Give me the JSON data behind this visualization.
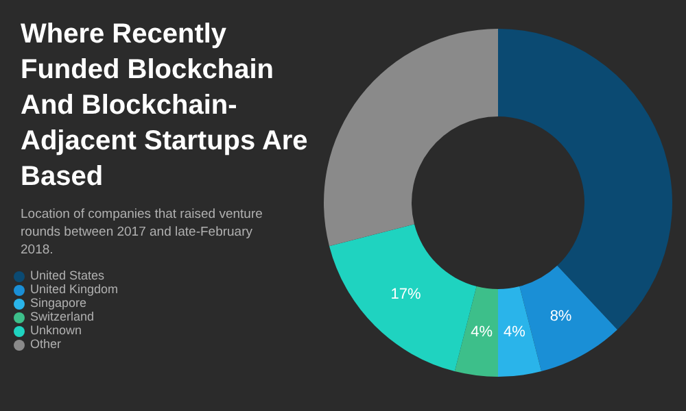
{
  "chart_data": {
    "type": "donut",
    "title": "Where Recently Funded Blockchain And Blockchain-Adjacent Startups Are Based",
    "subtitle": "Location of companies that raised venture rounds between 2017 and late-February 2018.",
    "categories": [
      "United States",
      "United Kingdom",
      "Singapore",
      "Switzerland",
      "Unknown",
      "Other"
    ],
    "values": [
      38,
      8,
      4,
      4,
      17,
      29
    ],
    "colors": [
      "#0b4a72",
      "#1a8fd6",
      "#2ab4ea",
      "#3dbf8a",
      "#1fd3c0",
      "#8a8a8a"
    ],
    "value_labels": [
      null,
      "8%",
      "4%",
      "4%",
      "17%",
      null
    ],
    "legend": "left"
  }
}
